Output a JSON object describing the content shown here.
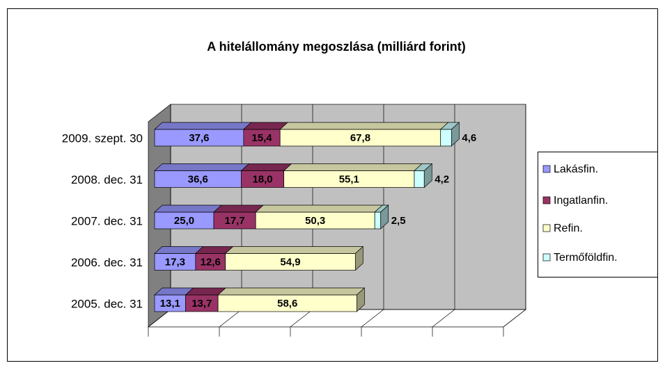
{
  "chart_data": {
    "type": "bar3d_stacked_horizontal",
    "title": "A hitelállomány megoszlása (milliárd forint)",
    "categories": [
      "2005. dec. 31",
      "2006. dec. 31",
      "2007. dec. 31",
      "2008. dec. 31",
      "2009. szept. 30"
    ],
    "series": [
      {
        "name": "Lakásfin.",
        "color": "#9999ff",
        "values": [
          13.1,
          17.3,
          25.0,
          36.6,
          37.6
        ],
        "value_labels": [
          "13,1",
          "17,3",
          "25,0",
          "36,6",
          "37,6"
        ]
      },
      {
        "name": "Ingatlanfin.",
        "color": "#993366",
        "values": [
          13.7,
          12.6,
          17.7,
          18.0,
          15.4
        ],
        "value_labels": [
          "13,7",
          "12,6",
          "17,7",
          "18,0",
          "15,4"
        ]
      },
      {
        "name": "Refin.",
        "color": "#ffffcc",
        "values": [
          58.6,
          54.9,
          50.3,
          55.1,
          67.8
        ],
        "value_labels": [
          "58,6",
          "54,9",
          "50,3",
          "55,1",
          "67,8"
        ]
      },
      {
        "name": "Termőföldfin.",
        "color": "#ccffff",
        "values": [
          null,
          null,
          2.5,
          4.2,
          4.6
        ],
        "value_labels": [
          null,
          null,
          "2,5",
          "4,2",
          "4,6"
        ]
      }
    ],
    "xlim": [
      0,
      150
    ],
    "xticks": [
      0,
      30,
      60,
      90,
      120,
      150
    ],
    "grid": true,
    "legend": "right"
  }
}
